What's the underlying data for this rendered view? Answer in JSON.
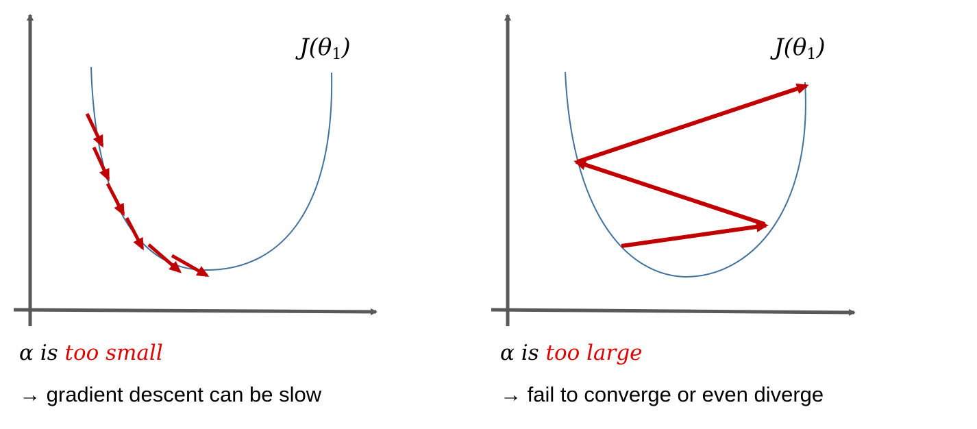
{
  "panels": {
    "left": {
      "function_label": "J(θ",
      "function_subscript": "1",
      "function_close": ")",
      "caption_symbol": "α is",
      "caption_emphasis": "too small",
      "note_arrow": "→",
      "note_text": "gradient descent can be slow"
    },
    "right": {
      "function_label": "J(θ",
      "function_subscript": "1",
      "function_close": ")",
      "caption_symbol": "α is",
      "caption_emphasis": "too large",
      "note_arrow": "→",
      "note_text": "fail to converge or even diverge"
    }
  },
  "colors": {
    "axis": "#595959",
    "curve": "#41719c",
    "arrow": "#c00000",
    "emphasis": "#e00000"
  }
}
